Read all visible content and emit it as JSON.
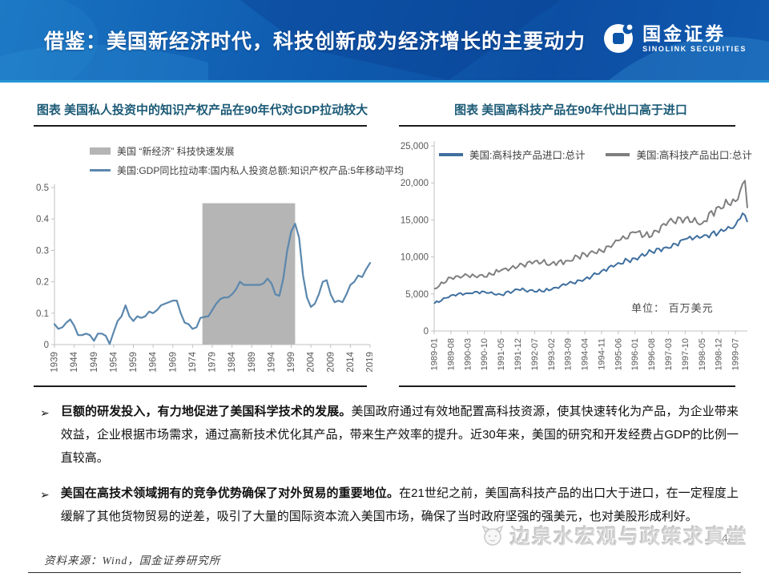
{
  "header": {
    "title": "借鉴：美国新经济时代，科技创新成为经济增长的主要动力",
    "logo_cn": "国金证券",
    "logo_en": "SINOLINK SECURITIES"
  },
  "colors": {
    "header_blue": "#0f5cb0",
    "title_navy": "#1b5a76",
    "band_gray": "#b5b5b5",
    "left_line_blue": "#5b87ad",
    "import_blue": "#3f6f9f",
    "export_gray": "#7f7f7f",
    "axis_gray": "#c0c0c0",
    "tick_label_gray": "#595959"
  },
  "bullet_marker": "➢",
  "bullets": [
    {
      "bold": "巨额的研发投入，有力地促进了美国科学技术的发展。",
      "rest": "美国政府通过有效地配置高科技资源，使其快速转化为产品，为企业带来效益，企业根据市场需求，通过高新技术优化其产品，带来生产效率的提升。近30年来，美国的研究和开发经费占GDP的比例一直较高。"
    },
    {
      "bold": "美国在高技术领域拥有的竞争优势确保了对外贸易的重要地位。",
      "rest": "在21世纪之前，美国高科技产品的出口大于进口，在一定程度上缓解了其他货物贸易的逆差，吸引了大量的国际资本流入美国市场，确保了当时政府坚强的强美元，也对美股形成利好。"
    }
  ],
  "footer": {
    "source": "资料来源：Wind，国金证券研究所",
    "watermark": "边泉水宏观与政策求真堂",
    "page": "42"
  },
  "chart_data": [
    {
      "type": "line",
      "title": "图表 美国私人投资中的知识产权产品在90年代对GDP拉动较大",
      "ylim": [
        0,
        0.5
      ],
      "yticks": [
        0,
        0.1,
        0.2,
        0.3,
        0.4,
        0.5
      ],
      "xticks": [
        1939,
        1944,
        1949,
        1954,
        1959,
        1964,
        1969,
        1974,
        1979,
        1984,
        1989,
        1994,
        1999,
        2004,
        2009,
        2014,
        2019
      ],
      "xlim": [
        1939,
        2019
      ],
      "grid": false,
      "legend_position": "top-left",
      "band": {
        "label": "美国 “新经济” 科技快速发展",
        "color": "#b5b5b5",
        "x_from": 1976.5,
        "x_to": 2000,
        "y_from": 0,
        "y_to": 0.45
      },
      "series": [
        {
          "name": "美国:GDP同比拉动率:国内私人投资总额:知识产权产品:5年移动平均",
          "color": "#5b87ad",
          "data": [
            [
              1939,
              0.065
            ],
            [
              1940,
              0.05
            ],
            [
              1941,
              0.055
            ],
            [
              1942,
              0.07
            ],
            [
              1943,
              0.08
            ],
            [
              1944,
              0.06
            ],
            [
              1945,
              0.03
            ],
            [
              1946,
              0.03
            ],
            [
              1947,
              0.035
            ],
            [
              1948,
              0.03
            ],
            [
              1949,
              0.012
            ],
            [
              1950,
              0.035
            ],
            [
              1951,
              0.035
            ],
            [
              1952,
              0.028
            ],
            [
              1953,
              0.002
            ],
            [
              1954,
              0.04
            ],
            [
              1955,
              0.075
            ],
            [
              1956,
              0.09
            ],
            [
              1957,
              0.125
            ],
            [
              1958,
              0.09
            ],
            [
              1959,
              0.075
            ],
            [
              1960,
              0.09
            ],
            [
              1961,
              0.085
            ],
            [
              1962,
              0.09
            ],
            [
              1963,
              0.105
            ],
            [
              1964,
              0.1
            ],
            [
              1965,
              0.11
            ],
            [
              1966,
              0.125
            ],
            [
              1967,
              0.13
            ],
            [
              1968,
              0.135
            ],
            [
              1969,
              0.14
            ],
            [
              1970,
              0.14
            ],
            [
              1971,
              0.1
            ],
            [
              1972,
              0.07
            ],
            [
              1973,
              0.065
            ],
            [
              1974,
              0.05
            ],
            [
              1975,
              0.055
            ],
            [
              1976,
              0.085
            ],
            [
              1977,
              0.088
            ],
            [
              1978,
              0.09
            ],
            [
              1979,
              0.11
            ],
            [
              1980,
              0.13
            ],
            [
              1981,
              0.145
            ],
            [
              1982,
              0.15
            ],
            [
              1983,
              0.15
            ],
            [
              1984,
              0.16
            ],
            [
              1985,
              0.175
            ],
            [
              1986,
              0.2
            ],
            [
              1987,
              0.19
            ],
            [
              1988,
              0.19
            ],
            [
              1989,
              0.19
            ],
            [
              1990,
              0.19
            ],
            [
              1991,
              0.19
            ],
            [
              1992,
              0.195
            ],
            [
              1993,
              0.21
            ],
            [
              1994,
              0.195
            ],
            [
              1995,
              0.16
            ],
            [
              1996,
              0.155
            ],
            [
              1997,
              0.21
            ],
            [
              1998,
              0.3
            ],
            [
              1999,
              0.36
            ],
            [
              2000,
              0.385
            ],
            [
              2001,
              0.34
            ],
            [
              2002,
              0.22
            ],
            [
              2003,
              0.15
            ],
            [
              2004,
              0.12
            ],
            [
              2005,
              0.13
            ],
            [
              2006,
              0.16
            ],
            [
              2007,
              0.2
            ],
            [
              2008,
              0.205
            ],
            [
              2009,
              0.16
            ],
            [
              2010,
              0.135
            ],
            [
              2011,
              0.14
            ],
            [
              2012,
              0.135
            ],
            [
              2013,
              0.16
            ],
            [
              2014,
              0.19
            ],
            [
              2015,
              0.2
            ],
            [
              2016,
              0.22
            ],
            [
              2017,
              0.215
            ],
            [
              2018,
              0.24
            ],
            [
              2019,
              0.26
            ]
          ]
        }
      ]
    },
    {
      "type": "line",
      "title": "图表 美国高科技产品在90年代出口高于进口",
      "unit": "单位： 百万美元",
      "ylim": [
        0,
        25000
      ],
      "yticks": [
        0,
        5000,
        10000,
        15000,
        20000,
        25000
      ],
      "x_tick_labels": [
        "1989-01",
        "1989-08",
        "1990-03",
        "1990-10",
        "1991-05",
        "1991-12",
        "1992-07",
        "1993-02",
        "1993-09",
        "1994-04",
        "1994-11",
        "1995-06",
        "1996-01",
        "1996-08",
        "1997-03",
        "1997-10",
        "1998-05",
        "1998-12",
        "1999-07"
      ],
      "x_tick_month_index": [
        0,
        7,
        14,
        21,
        28,
        35,
        42,
        49,
        56,
        63,
        70,
        77,
        84,
        91,
        98,
        105,
        112,
        119,
        126
      ],
      "months_total": 132,
      "grid": false,
      "legend_position": "top-inside",
      "series": [
        {
          "name": "美国:高科技产品进口:总计",
          "color": "#3f6f9f",
          "anchors": [
            [
              0,
              3700
            ],
            [
              7,
              4800
            ],
            [
              14,
              5100
            ],
            [
              21,
              5300
            ],
            [
              28,
              4900
            ],
            [
              35,
              5600
            ],
            [
              42,
              5300
            ],
            [
              49,
              5600
            ],
            [
              56,
              6400
            ],
            [
              63,
              7000
            ],
            [
              70,
              8100
            ],
            [
              77,
              9200
            ],
            [
              84,
              9800
            ],
            [
              91,
              10700
            ],
            [
              98,
              11200
            ],
            [
              105,
              12400
            ],
            [
              112,
              12700
            ],
            [
              119,
              13300
            ],
            [
              126,
              14300
            ],
            [
              129,
              15900
            ],
            [
              131,
              14700
            ]
          ]
        },
        {
          "name": "美国:高科技产品出口:总计",
          "color": "#7f7f7f",
          "anchors": [
            [
              0,
              5700
            ],
            [
              7,
              7200
            ],
            [
              14,
              7500
            ],
            [
              21,
              7300
            ],
            [
              28,
              8200
            ],
            [
              35,
              8700
            ],
            [
              42,
              9400
            ],
            [
              49,
              9100
            ],
            [
              56,
              9500
            ],
            [
              63,
              10400
            ],
            [
              70,
              10800
            ],
            [
              77,
              12200
            ],
            [
              84,
              13300
            ],
            [
              91,
              12800
            ],
            [
              98,
              14800
            ],
            [
              105,
              15200
            ],
            [
              112,
              14500
            ],
            [
              119,
              16800
            ],
            [
              126,
              17500
            ],
            [
              130,
              20300
            ],
            [
              131,
              16600
            ]
          ]
        }
      ]
    }
  ]
}
